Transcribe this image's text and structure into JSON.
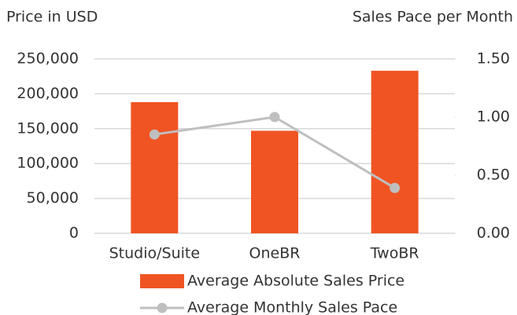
{
  "chart_data": {
    "type": "bar",
    "ylabel": "Price in USD",
    "y2label": "Sales Pace per Month",
    "categories": [
      "Studio/Suite",
      "OneBR",
      "TwoBR"
    ],
    "series": [
      {
        "name": "Average Absolute Sales Price",
        "type": "bar",
        "color": "#f05423",
        "values": [
          188000,
          147000,
          233000
        ]
      },
      {
        "name": "Average Monthly Sales Pace",
        "type": "line",
        "axis": "y2",
        "color": "#bfbfbf",
        "values": [
          0.85,
          1.0,
          0.39
        ]
      }
    ],
    "ylim": [
      0,
      250000
    ],
    "yticks": [
      0,
      {
        "value": 50000,
        "label": "50,000"
      },
      {
        "value": 100000,
        "label": "100,000"
      },
      {
        "value": 150000,
        "label": "150,000"
      },
      {
        "value": 200000,
        "label": "200,000"
      },
      {
        "value": 250000,
        "label": "250,000"
      }
    ],
    "y2lim": [
      0,
      1.5
    ],
    "y2ticks": [
      {
        "value": 0,
        "label": "0.00"
      },
      {
        "value": 0.5,
        "label": "0.50"
      },
      {
        "value": 1,
        "label": "1.00"
      },
      {
        "value": 1.5,
        "label": "1.50"
      }
    ],
    "grid": true,
    "legend": "bottom"
  }
}
